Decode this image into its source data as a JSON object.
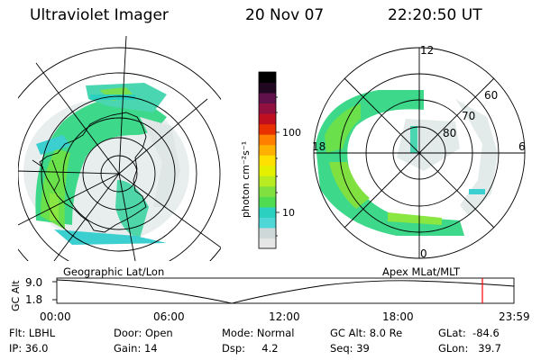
{
  "header": {
    "instrument": "Ultraviolet Imager",
    "date": "20 Nov 07",
    "time": "22:20:50 UT"
  },
  "left_panel": {
    "caption": "Geographic Lat/Lon"
  },
  "right_panel": {
    "caption": "Apex MLat/MLT",
    "mlt_labels": [
      "12",
      "18",
      "6",
      "0"
    ],
    "lat_labels": [
      "60",
      "70",
      "80"
    ]
  },
  "colorbar": {
    "unit_label": "photon cm⁻²s⁻¹",
    "ticks": [
      "100",
      "10"
    ],
    "colors": [
      "#e6e6e6",
      "#cfd8d8",
      "#4fd6d6",
      "#2bd0c0",
      "#50dc50",
      "#80e040",
      "#b8ec20",
      "#e4f000",
      "#ffe000",
      "#ffb000",
      "#ff8000",
      "#e83000",
      "#c01020",
      "#901040",
      "#60104a",
      "#200820",
      "#000000"
    ]
  },
  "timeline": {
    "ylabel": "GC Alt",
    "y_ticks": [
      "9.0",
      "1.8"
    ],
    "x_ticks": [
      "00:00",
      "06:00",
      "12:00",
      "18:00",
      "23:59"
    ],
    "current_marker_color": "#ff0000"
  },
  "info": {
    "rows": [
      [
        "Flt: LBHL",
        "Door: Open",
        "Mode: Normal",
        "GC Alt: 8.0 Re",
        "GLat:  -84.6"
      ],
      [
        "IP: 36.0",
        "Gain: 14",
        "Dsp:     4.2",
        "Seq: 39",
        "GLon:   39.7"
      ]
    ]
  }
}
